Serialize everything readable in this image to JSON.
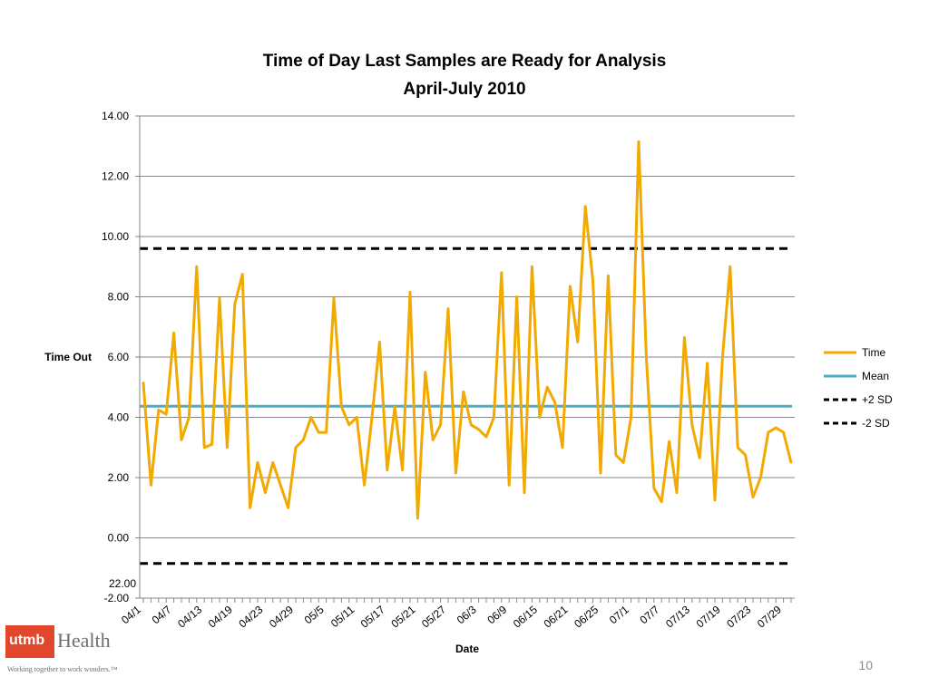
{
  "chart_data": {
    "type": "line",
    "title_line1": "Time of Day Last Samples are Ready for Analysis",
    "title_line2": "April-July 2010",
    "xlabel": "Date",
    "ylabel": "Time Out",
    "ylim": [
      -2,
      14
    ],
    "yticks": [
      "-2.00",
      "0.00",
      "2.00",
      "4.00",
      "6.00",
      "8.00",
      "10.00",
      "12.00",
      "14.00"
    ],
    "grid": true,
    "legend_position": "right",
    "x_tick_labels": [
      "04/1",
      "04/7",
      "04/13",
      "04/19",
      "04/23",
      "04/29",
      "05/5",
      "05/11",
      "05/17",
      "05/21",
      "05/27",
      "06/3",
      "06/9",
      "06/15",
      "06/21",
      "06/25",
      "07/1",
      "07/7",
      "07/13",
      "07/19",
      "07/23",
      "07/29"
    ],
    "overlap_label": "22.00",
    "series": [
      {
        "name": "Time",
        "color": "#f2a900",
        "values": [
          5.15,
          1.75,
          4.25,
          4.1,
          6.8,
          3.25,
          4.0,
          9.0,
          3.0,
          3.1,
          7.95,
          3.0,
          7.75,
          8.75,
          1.0,
          2.5,
          1.5,
          2.5,
          1.75,
          1.0,
          3.0,
          3.25,
          4.0,
          3.5,
          3.5,
          7.95,
          4.35,
          3.75,
          4.0,
          1.75,
          4.0,
          6.5,
          2.25,
          4.35,
          2.25,
          8.15,
          0.65,
          5.5,
          3.25,
          3.75,
          7.6,
          2.15,
          4.85,
          3.75,
          3.6,
          3.35,
          4.0,
          8.8,
          1.75,
          8.0,
          1.5,
          9.0,
          4.0,
          5.0,
          4.5,
          3.0,
          8.35,
          6.5,
          11.0,
          8.5,
          2.15,
          8.7,
          2.75,
          2.5,
          4.0,
          13.15,
          6.0,
          1.65,
          1.2,
          3.2,
          1.5,
          6.65,
          3.75,
          2.65,
          5.8,
          1.25,
          6.0,
          9.0,
          3.0,
          2.75,
          1.35,
          2.0,
          3.5,
          3.65,
          3.5,
          2.5
        ]
      },
      {
        "name": "Mean",
        "color": "#4bacc6",
        "value": 4.37
      },
      {
        "name": "+2 SD",
        "color": "#000000",
        "value": 9.6
      },
      {
        "name": "-2 SD",
        "color": "#000000",
        "value": -0.85
      }
    ]
  },
  "page": {
    "number": "10"
  },
  "logo": {
    "brand": "utmb",
    "name": "Health",
    "tagline": "Working together to work wonders.™"
  }
}
